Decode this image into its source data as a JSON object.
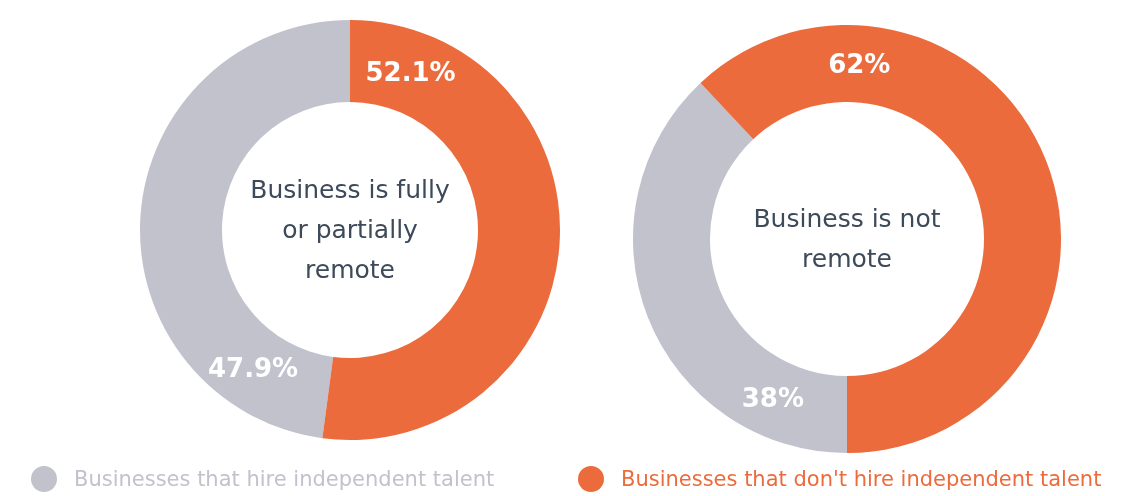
{
  "chart_data": [
    {
      "type": "donut",
      "title": "Business is fully or partially remote",
      "categories": [
        "Businesses that hire independent talent",
        "Businesses that don't hire independent talent"
      ],
      "values": [
        47.9,
        52.1
      ],
      "value_labels": [
        "47.9%",
        "52.1%"
      ],
      "colors": [
        "#c1c2cc",
        "#ec6b3c"
      ],
      "legend": "bottom"
    },
    {
      "type": "donut",
      "title": "Business is not remote",
      "categories": [
        null,
        null
      ],
      "values": [
        38,
        62
      ],
      "value_labels": [
        "38%",
        "62%"
      ],
      "colors": [
        "#c1c2cc",
        "#ec6b3c"
      ]
    }
  ]
}
